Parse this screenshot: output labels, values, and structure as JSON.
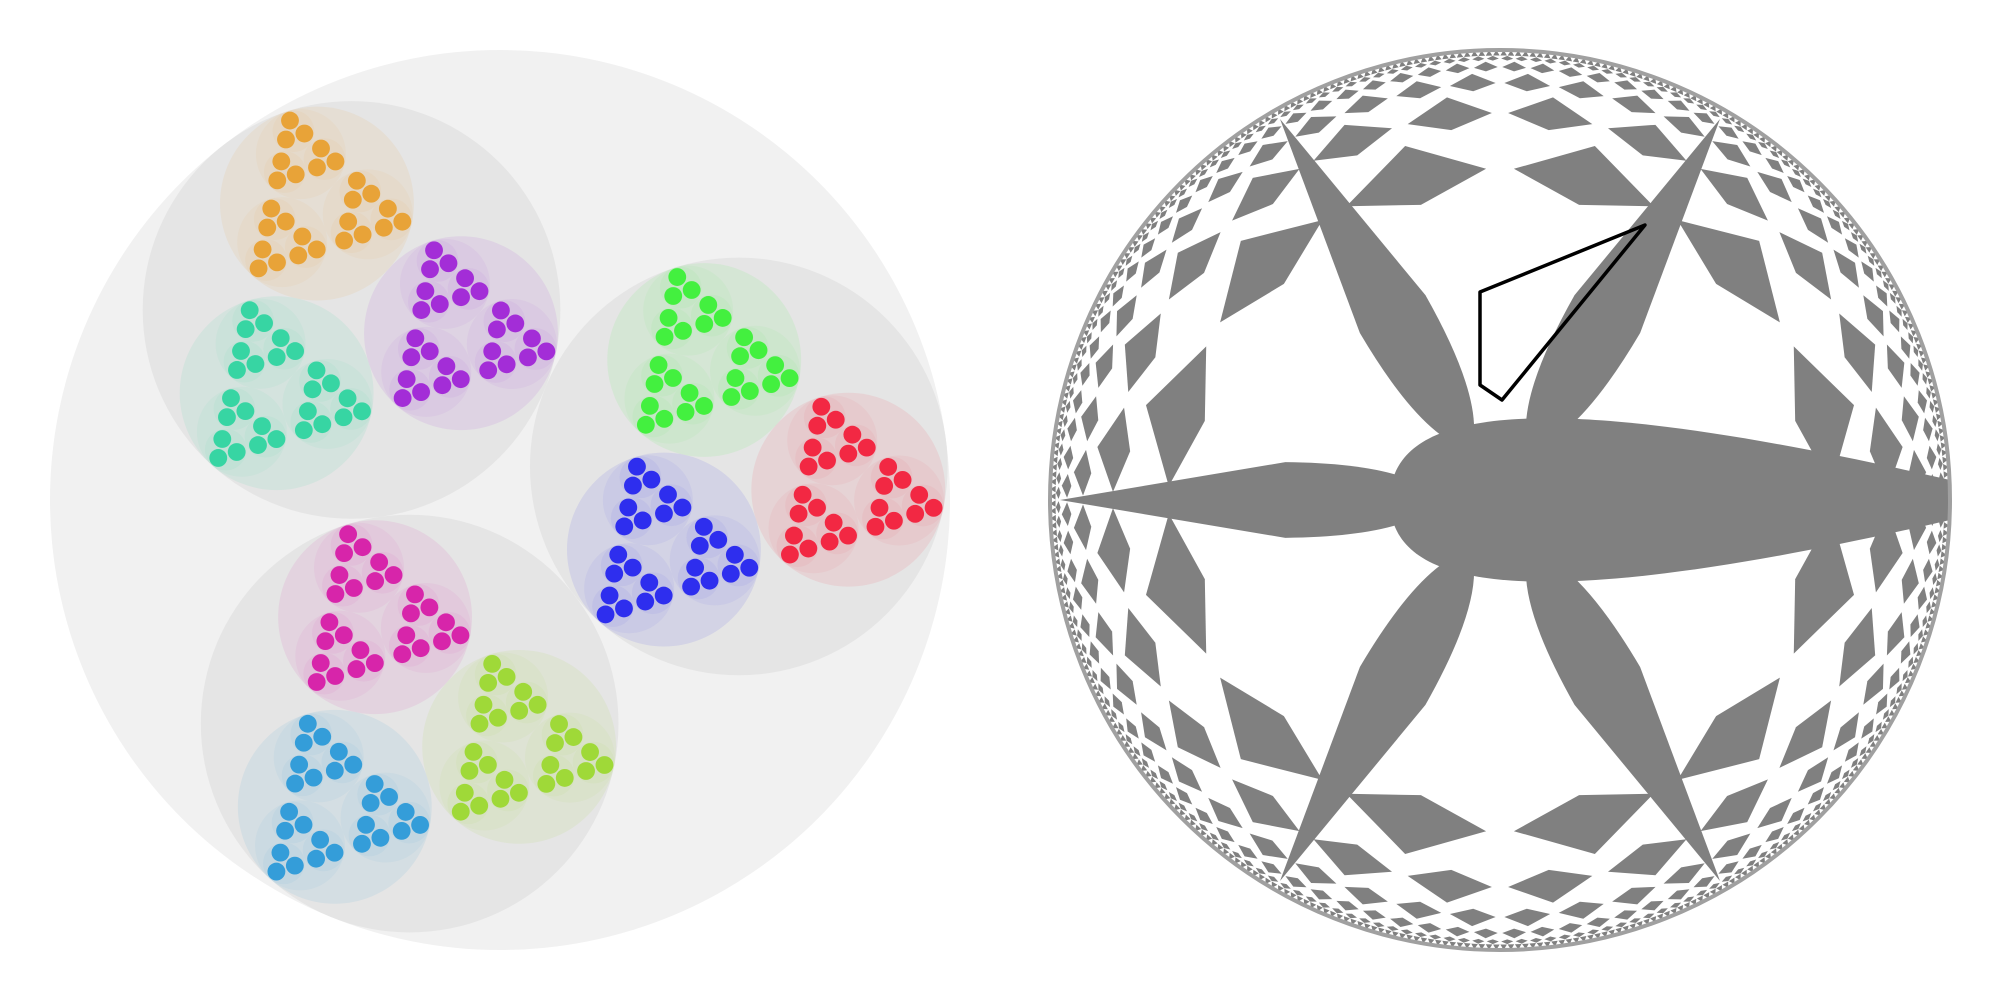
{
  "figure": {
    "background": "#ffffff",
    "panels": [
      {
        "id": "left",
        "kind": "nested-circle-packing",
        "outer_fill": "#f1f1f1",
        "level2_fill": "#e5e5e5",
        "recursion_depth": 4,
        "clusters": [
          {
            "name": "teal",
            "color": "#2fd4a0"
          },
          {
            "name": "orange",
            "color": "#e8a030"
          },
          {
            "name": "purple",
            "color": "#a025d6"
          },
          {
            "name": "green",
            "color": "#3cf038"
          },
          {
            "name": "red",
            "color": "#f2203c"
          },
          {
            "name": "blue",
            "color": "#2626ee"
          },
          {
            "name": "lime",
            "color": "#9cd830"
          },
          {
            "name": "sky",
            "color": "#2c9ad8"
          },
          {
            "name": "magenta",
            "color": "#d61ca8"
          }
        ]
      },
      {
        "id": "right",
        "kind": "hyperbolic-disk-tiling",
        "tile_fill": "#808080",
        "gap_fill": "#ffffff",
        "boundary_stroke": "#a0a0a0",
        "highlight_stroke": "#000000",
        "rings": [
          {
            "count": 6,
            "tile": "petal"
          },
          {
            "count": 12,
            "tile": "kite"
          },
          {
            "count": 24,
            "tile": "kite"
          },
          {
            "count": 48,
            "tile": "kite"
          },
          {
            "count": 96,
            "tile": "kite"
          },
          {
            "count": 192,
            "tile": "kite"
          },
          {
            "count": 384,
            "tile": "tooth"
          }
        ]
      }
    ]
  }
}
